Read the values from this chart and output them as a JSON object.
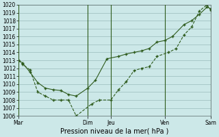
{
  "xlabel": "Pression niveau de la mer( hPa )",
  "background_color": "#cce8e8",
  "grid_color": "#99bbbb",
  "line_color": "#2d5a1b",
  "ylim": [
    1006,
    1020
  ],
  "yticks": [
    1006,
    1007,
    1008,
    1009,
    1010,
    1011,
    1012,
    1013,
    1014,
    1015,
    1016,
    1017,
    1018,
    1019,
    1020
  ],
  "day_labels": [
    "Mar",
    "Dim",
    "Jeu",
    "Ven",
    "Sam"
  ],
  "day_positions": [
    0,
    9,
    12,
    19,
    25
  ],
  "xlim": [
    0,
    25
  ],
  "line1_x": [
    0,
    0.5,
    1.5,
    2.5,
    3.5,
    4.5,
    5.5,
    6.5,
    7.5,
    9.5,
    10.5,
    12,
    13,
    14,
    15,
    16,
    17,
    18,
    19.5,
    20.5,
    21.5,
    22.5,
    23.5,
    24.5,
    25
  ],
  "line1_y": [
    1013.0,
    1012.5,
    1011.8,
    1009.0,
    1008.5,
    1008.0,
    1008.0,
    1008.0,
    1006.0,
    1007.5,
    1008.0,
    1008.0,
    1009.3,
    1010.3,
    1011.7,
    1012.0,
    1012.2,
    1013.5,
    1014.0,
    1014.5,
    1016.2,
    1017.2,
    1019.2,
    1020.0,
    1019.3
  ],
  "line2_x": [
    0,
    0.5,
    1.5,
    2.5,
    3.5,
    4.5,
    5.5,
    6.5,
    7.5,
    9,
    10,
    11.5,
    13,
    14,
    15,
    16,
    17,
    18,
    19,
    20,
    21.5,
    22.5,
    23.5,
    24.5,
    25
  ],
  "line2_y": [
    1013.0,
    1012.7,
    1011.5,
    1010.2,
    1009.5,
    1009.3,
    1009.2,
    1008.7,
    1008.5,
    1009.5,
    1010.5,
    1013.2,
    1013.5,
    1013.8,
    1014.0,
    1014.2,
    1014.5,
    1015.3,
    1015.5,
    1016.0,
    1017.5,
    1018.0,
    1018.8,
    1019.7,
    1019.5
  ],
  "vline_color": "#2d5a1b",
  "ytick_fontsize": 5.5,
  "xtick_fontsize": 5.5,
  "xlabel_fontsize": 7.0
}
